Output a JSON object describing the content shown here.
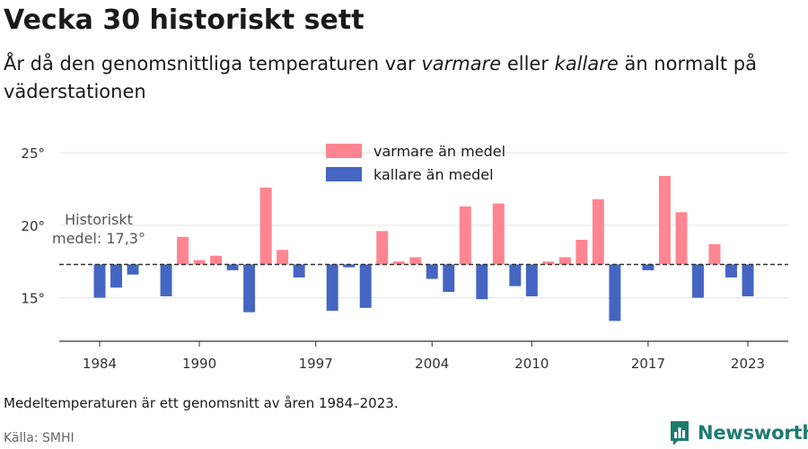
{
  "title": "Vecka 30 historiskt sett",
  "subtitle": {
    "part1": "År då den genomsnittliga temperaturen var ",
    "warm_word": "varmare",
    "part2": " eller ",
    "cold_word": "kallare",
    "part3": " än normalt på väderstationen"
  },
  "note": "Medeltemperaturen är ett genomsnitt av åren 1984–2023.",
  "source": "Källa: SMHI",
  "brand": "Newsworthy",
  "colors": {
    "warm": "#ff8591",
    "cold": "#4466c2",
    "brand": "#1f7a70"
  },
  "chart_data": {
    "type": "bar",
    "baseline": 17.3,
    "baseline_label": [
      "Historiskt",
      "medel: 17,3°"
    ],
    "ylim": [
      12,
      26
    ],
    "yticks": [
      15,
      20,
      25
    ],
    "ytick_labels": [
      "15°",
      "20°",
      "25°"
    ],
    "xticks": [
      1984,
      1990,
      1997,
      2004,
      2010,
      2017,
      2023
    ],
    "xtick_labels": [
      "1984",
      "1990",
      "1997",
      "2004",
      "2010",
      "2017",
      "2023"
    ],
    "legend": [
      {
        "key": "warm",
        "label": "varmare än medel"
      },
      {
        "key": "cold",
        "label": "kallare än medel"
      }
    ],
    "legend_placement": "top-center",
    "grid": true,
    "years": [
      1984,
      1985,
      1986,
      1987,
      1988,
      1989,
      1990,
      1991,
      1992,
      1993,
      1994,
      1995,
      1996,
      1997,
      1998,
      1999,
      2000,
      2001,
      2002,
      2003,
      2004,
      2005,
      2006,
      2007,
      2008,
      2009,
      2010,
      2011,
      2012,
      2013,
      2014,
      2015,
      2016,
      2017,
      2018,
      2019,
      2020,
      2021,
      2022,
      2023
    ],
    "values": [
      15.0,
      15.7,
      16.6,
      null,
      15.1,
      19.2,
      17.6,
      17.9,
      16.9,
      14.0,
      22.6,
      18.3,
      16.4,
      null,
      14.1,
      17.1,
      14.3,
      19.6,
      17.5,
      17.8,
      16.3,
      15.4,
      21.3,
      14.9,
      21.5,
      15.8,
      15.1,
      17.5,
      17.8,
      19.0,
      21.8,
      13.4,
      null,
      16.9,
      23.4,
      20.9,
      15.0,
      18.7,
      16.4,
      15.1
    ]
  }
}
